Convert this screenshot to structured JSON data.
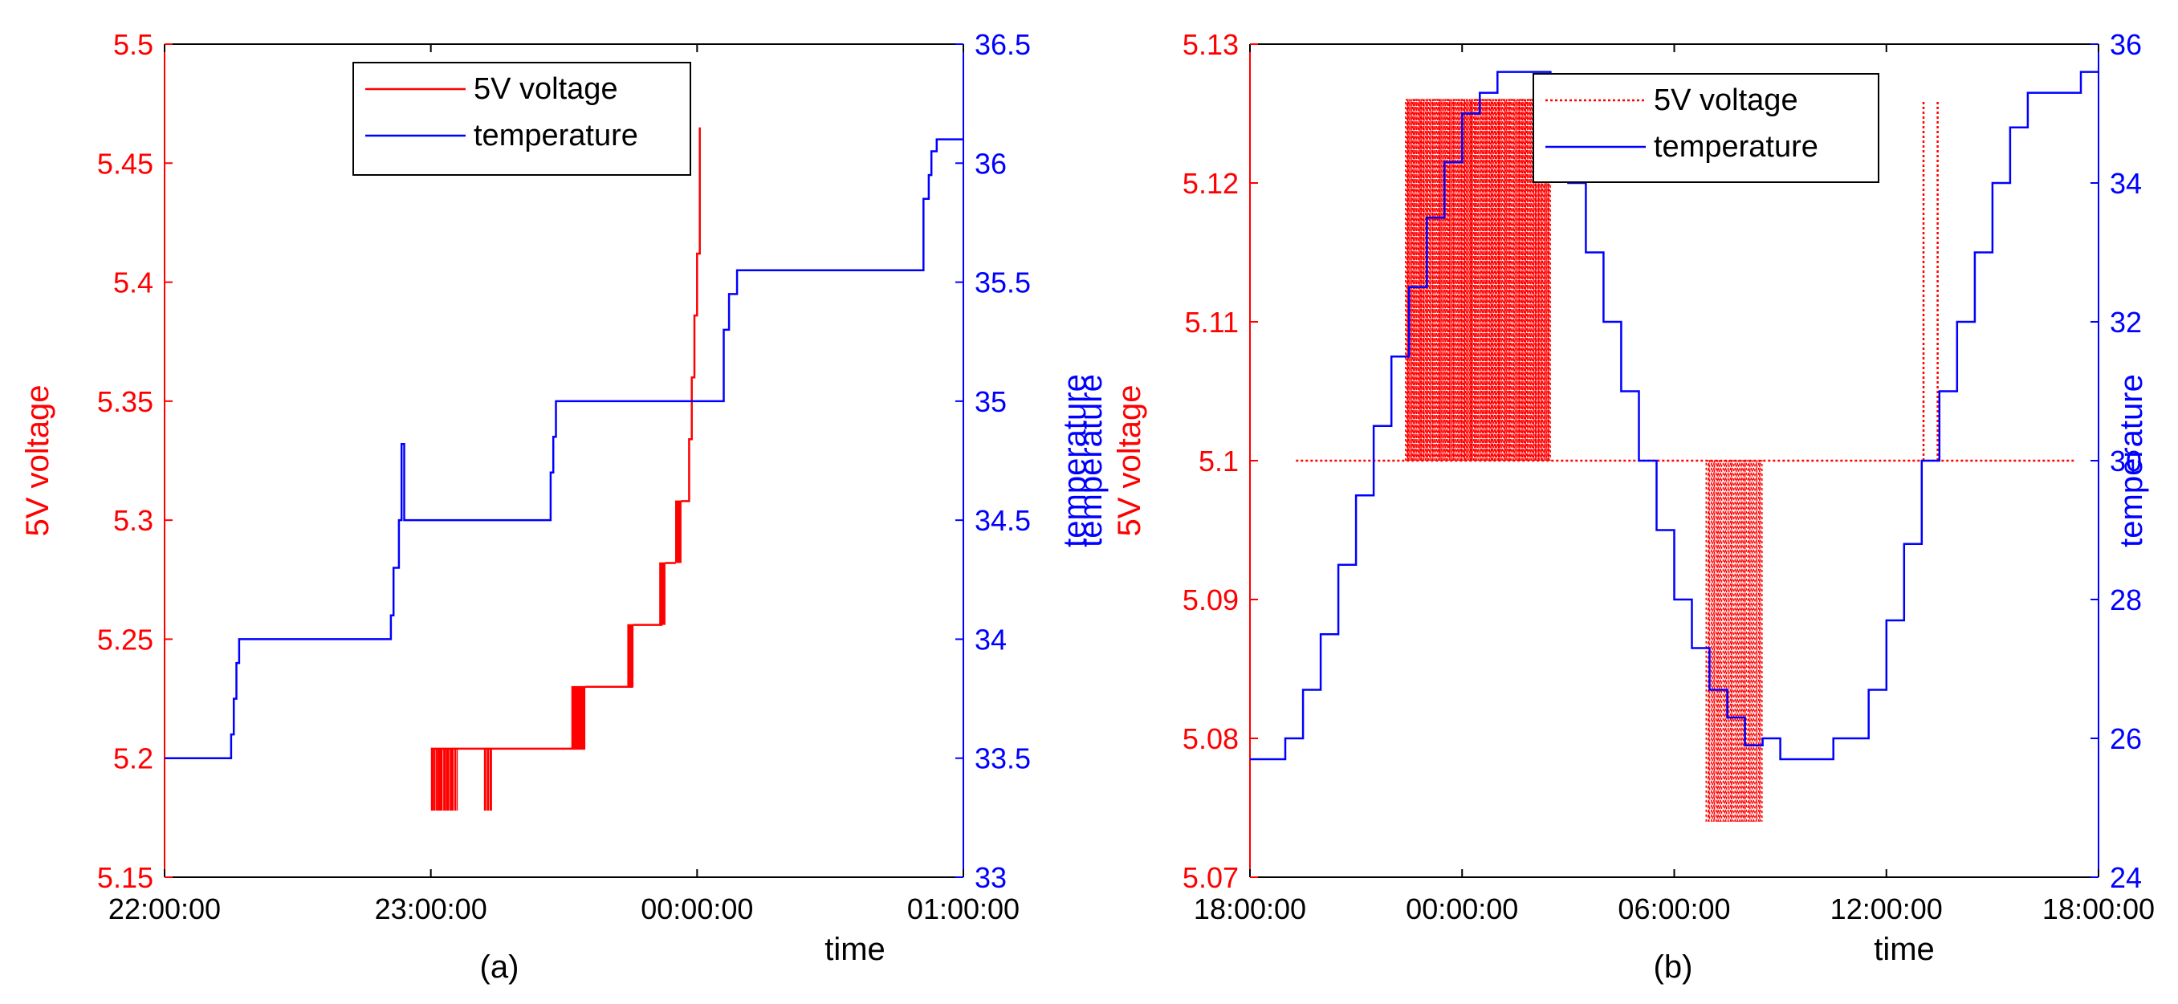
{
  "colors": {
    "voltage": "#ff0000",
    "temperature": "#0000ff",
    "axis": "#000000"
  },
  "chart_data": [
    {
      "type": "line",
      "caption": "(a)",
      "xlabel": "time",
      "ylabel_left": "5V voltage",
      "ylabel_right": "temperature",
      "x_ticks": [
        "22:00:00",
        "23:00:00",
        "00:00:00",
        "01:00:00"
      ],
      "x_range_hours": [
        22,
        25
      ],
      "ylim_left": [
        5.15,
        5.5
      ],
      "y_ticks_left": [
        "5.15",
        "5.2",
        "5.25",
        "5.3",
        "5.35",
        "5.4",
        "5.45",
        "5.5"
      ],
      "ylim_right": [
        33,
        36.5
      ],
      "y_ticks_right": [
        "33",
        "33.5",
        "34",
        "34.5",
        "35",
        "35.5",
        "36",
        "36.5"
      ],
      "legend_position": "top-center",
      "series": [
        {
          "name": "5V voltage",
          "axis": "left",
          "style": "solid",
          "segments": [
            {
              "kind": "noise",
              "x0": 23.0,
              "x1": 23.1,
              "lo": 5.178,
              "hi": 5.204,
              "n": 12
            },
            {
              "kind": "noise",
              "x0": 23.2,
              "x1": 23.23,
              "lo": 5.178,
              "hi": 5.204,
              "n": 3
            },
            {
              "kind": "line",
              "x": [
                23.0,
                23.58
              ],
              "y": [
                5.204,
                5.204
              ]
            },
            {
              "kind": "noise",
              "x0": 23.53,
              "x1": 23.58,
              "lo": 5.204,
              "hi": 5.23,
              "n": 10
            },
            {
              "kind": "line",
              "x": [
                23.58,
                23.76
              ],
              "y": [
                5.23,
                5.23
              ]
            },
            {
              "kind": "noise",
              "x0": 23.74,
              "x1": 23.76,
              "lo": 5.23,
              "hi": 5.256,
              "n": 6
            },
            {
              "kind": "line",
              "x": [
                23.76,
                23.87
              ],
              "y": [
                5.256,
                5.256
              ]
            },
            {
              "kind": "noise",
              "x0": 23.86,
              "x1": 23.88,
              "lo": 5.256,
              "hi": 5.282,
              "n": 5
            },
            {
              "kind": "line",
              "x": [
                23.88,
                23.92
              ],
              "y": [
                5.282,
                5.282
              ]
            },
            {
              "kind": "noise",
              "x0": 23.92,
              "x1": 23.94,
              "lo": 5.282,
              "hi": 5.308,
              "n": 4
            },
            {
              "kind": "line",
              "x": [
                23.94,
                23.97,
                23.97,
                23.98,
                23.98,
                23.99,
                23.99,
                24.0,
                24.0,
                24.01,
                24.01
              ],
              "y": [
                5.308,
                5.308,
                5.334,
                5.334,
                5.36,
                5.36,
                5.386,
                5.386,
                5.412,
                5.412,
                5.465
              ]
            }
          ]
        },
        {
          "name": "temperature",
          "axis": "right",
          "style": "solid",
          "x": [
            22.0,
            22.25,
            22.25,
            22.26,
            22.26,
            22.27,
            22.27,
            22.28,
            22.28,
            22.85,
            22.85,
            22.86,
            22.86,
            22.88,
            22.88,
            22.89,
            22.89,
            22.9,
            22.9,
            23.45,
            23.45,
            23.46,
            23.46,
            23.47,
            23.47,
            24.1,
            24.1,
            24.12,
            24.12,
            24.15,
            24.15,
            24.85,
            24.85,
            24.87,
            24.87,
            24.88,
            24.88,
            24.9,
            24.9,
            25.0
          ],
          "y": [
            33.5,
            33.5,
            33.6,
            33.6,
            33.75,
            33.75,
            33.9,
            33.9,
            34.0,
            34.0,
            34.1,
            34.1,
            34.3,
            34.3,
            34.5,
            34.5,
            34.82,
            34.82,
            34.5,
            34.5,
            34.7,
            34.7,
            34.85,
            34.85,
            35.0,
            35.0,
            35.3,
            35.3,
            35.45,
            35.45,
            35.55,
            35.55,
            35.85,
            35.85,
            35.95,
            35.95,
            36.05,
            36.05,
            36.1,
            36.1
          ]
        }
      ]
    },
    {
      "type": "line",
      "caption": "(b)",
      "xlabel": "time",
      "ylabel_left": "5V voltage",
      "ylabel_right": "temperature",
      "overlapping_ylabel": "temperature",
      "x_ticks": [
        "18:00:00",
        "00:00:00",
        "06:00:00",
        "12:00:00",
        "18:00:00"
      ],
      "x_range_hours": [
        18,
        42
      ],
      "ylim_left": [
        5.07,
        5.13
      ],
      "y_ticks_left": [
        "5.07",
        "5.08",
        "5.09",
        "5.1",
        "5.11",
        "5.12",
        "5.13"
      ],
      "ylim_right": [
        24,
        36
      ],
      "y_ticks_right": [
        "24",
        "26",
        "28",
        "30",
        "32",
        "34",
        "36"
      ],
      "legend_position": "top-center",
      "series": [
        {
          "name": "5V voltage",
          "axis": "left",
          "style": "dotted",
          "segments": [
            {
              "kind": "line",
              "x": [
                19.3,
                41.3
              ],
              "y": [
                5.1,
                5.1
              ]
            },
            {
              "kind": "noise",
              "x0": 22.4,
              "x1": 26.5,
              "lo": 5.1,
              "hi": 5.126,
              "n": 90
            },
            {
              "kind": "noise",
              "x0": 30.9,
              "x1": 32.5,
              "lo": 5.074,
              "hi": 5.1,
              "n": 24
            },
            {
              "kind": "line",
              "x": [
                37.05,
                37.05
              ],
              "y": [
                5.1,
                5.126
              ]
            },
            {
              "kind": "line",
              "x": [
                37.45,
                37.45
              ],
              "y": [
                5.1,
                5.126
              ]
            }
          ]
        },
        {
          "name": "temperature",
          "axis": "right",
          "style": "solid",
          "x": [
            18.0,
            19.0,
            19.0,
            19.5,
            19.5,
            20.0,
            20.0,
            20.5,
            20.5,
            21.0,
            21.0,
            21.5,
            21.5,
            22.0,
            22.0,
            22.5,
            22.5,
            23.0,
            23.0,
            23.5,
            23.5,
            24.0,
            24.0,
            24.5,
            24.5,
            25.0,
            25.0,
            26.5,
            26.5,
            27.0,
            27.0,
            27.5,
            27.5,
            28.0,
            28.0,
            28.5,
            28.5,
            29.0,
            29.0,
            29.5,
            29.5,
            30.0,
            30.0,
            30.5,
            30.5,
            31.0,
            31.0,
            31.5,
            31.5,
            32.0,
            32.0,
            32.5,
            32.5,
            33.0,
            33.0,
            33.4,
            33.4,
            34.5,
            34.5,
            35.5,
            35.5,
            36.0,
            36.0,
            36.5,
            36.5,
            37.0,
            37.0,
            37.5,
            37.5,
            38.0,
            38.0,
            38.5,
            38.5,
            39.0,
            39.0,
            39.5,
            39.5,
            40.0,
            40.0,
            41.5,
            41.5,
            42.0
          ],
          "y": [
            25.7,
            25.7,
            26.0,
            26.0,
            26.7,
            26.7,
            27.5,
            27.5,
            28.5,
            28.5,
            29.5,
            29.5,
            30.5,
            30.5,
            31.5,
            31.5,
            32.5,
            32.5,
            33.5,
            33.5,
            34.3,
            34.3,
            35.0,
            35.0,
            35.3,
            35.3,
            35.6,
            35.6,
            35.0,
            35.0,
            34.0,
            34.0,
            33.0,
            33.0,
            32.0,
            32.0,
            31.0,
            31.0,
            30.0,
            30.0,
            29.0,
            29.0,
            28.0,
            28.0,
            27.3,
            27.3,
            26.7,
            26.7,
            26.3,
            26.3,
            25.9,
            25.9,
            26.0,
            26.0,
            25.7,
            25.7,
            25.7,
            25.7,
            26.0,
            26.0,
            26.7,
            26.7,
            27.7,
            27.7,
            28.8,
            28.8,
            30.0,
            30.0,
            31.0,
            31.0,
            32.0,
            32.0,
            33.0,
            33.0,
            34.0,
            34.0,
            34.8,
            34.8,
            35.3,
            35.3,
            35.6,
            35.6
          ]
        }
      ]
    }
  ]
}
